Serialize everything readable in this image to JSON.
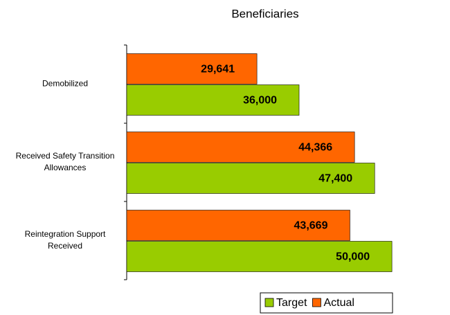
{
  "chart_data": {
    "type": "hbar",
    "title": "Beneficiaries",
    "categories": [
      "Demobilized",
      "Received Safety Transition Allowances",
      "Reintegration Support Received"
    ],
    "series": [
      {
        "name": "Target",
        "color": "#99cc00",
        "values": [
          36000,
          47400,
          50000
        ],
        "value_labels": [
          "36,000",
          "47,400",
          "50,000"
        ]
      },
      {
        "name": "Actual",
        "color": "#ff6600",
        "values": [
          29641,
          44366,
          43669
        ],
        "value_labels": [
          "29,641",
          "44,366",
          "43,669"
        ]
      }
    ],
    "xlim": [
      10000,
      55000
    ],
    "grid": false
  }
}
